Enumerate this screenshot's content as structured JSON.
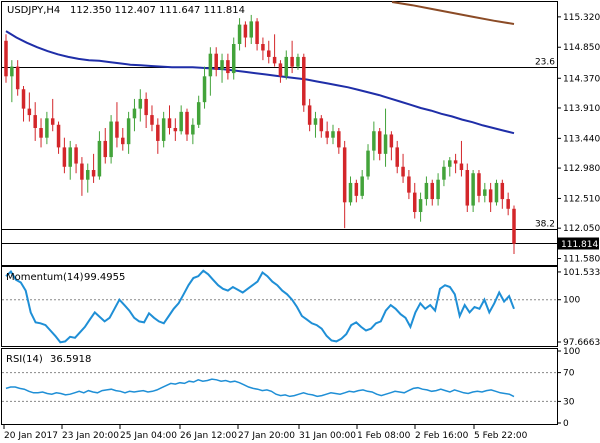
{
  "header": {
    "symbol_label": "USDJPY,H4",
    "ohlc_label": "112.350 112.407 111.647 111.814"
  },
  "colors": {
    "bull": "#43a33a",
    "bear": "#d3262a",
    "ma_fast": "#1f2ea8",
    "ma_slow": "#8b4b26",
    "indicator": "#1f8fd6",
    "level_line": "#000000",
    "price_tag_bg": "#000000",
    "price_tag_text": "#ffffff"
  },
  "chart_data": [
    {
      "type": "candlestick",
      "title": "USDJPY,H4",
      "ohlc_readout": "112.350 112.407 111.647 111.814",
      "y_ticks": [
        "115.320",
        "114.850",
        "114.370",
        "113.910",
        "113.440",
        "112.980",
        "112.510",
        "112.050",
        "111.580"
      ],
      "ylim": [
        111.48,
        115.55
      ],
      "x_ticks": [
        "20 Jan 2017",
        "23 Jan 20:00",
        "25 Jan 04:00",
        "26 Jan 12:00",
        "27 Jan 20:00",
        "31 Jan 00:00",
        "1 Feb 08:00",
        "2 Feb 16:00",
        "5 Feb 22:00"
      ],
      "current_price_label": "111.814",
      "current_price": 111.814,
      "fib_levels": [
        {
          "label": "23.6",
          "value": 114.55
        },
        {
          "label": "38.2",
          "value": 112.03
        }
      ],
      "candles": [
        {
          "o": 114.95,
          "h": 115.05,
          "l": 114.3,
          "c": 114.4
        },
        {
          "o": 114.4,
          "h": 114.65,
          "l": 114.0,
          "c": 114.55
        },
        {
          "o": 114.55,
          "h": 114.65,
          "l": 114.1,
          "c": 114.2
        },
        {
          "o": 114.2,
          "h": 114.25,
          "l": 113.7,
          "c": 113.9
        },
        {
          "o": 113.9,
          "h": 114.15,
          "l": 113.7,
          "c": 113.8
        },
        {
          "o": 113.8,
          "h": 114.0,
          "l": 113.4,
          "c": 113.6
        },
        {
          "o": 113.6,
          "h": 113.75,
          "l": 113.3,
          "c": 113.45
        },
        {
          "o": 113.45,
          "h": 113.85,
          "l": 113.35,
          "c": 113.75
        },
        {
          "o": 113.75,
          "h": 114.05,
          "l": 113.55,
          "c": 113.65
        },
        {
          "o": 113.65,
          "h": 113.7,
          "l": 113.2,
          "c": 113.3
        },
        {
          "o": 113.3,
          "h": 113.45,
          "l": 112.9,
          "c": 113.0
        },
        {
          "o": 113.0,
          "h": 113.4,
          "l": 112.8,
          "c": 113.3
        },
        {
          "o": 113.3,
          "h": 113.35,
          "l": 112.9,
          "c": 113.05
        },
        {
          "o": 113.05,
          "h": 113.15,
          "l": 112.55,
          "c": 112.8
        },
        {
          "o": 112.8,
          "h": 113.05,
          "l": 112.6,
          "c": 112.95
        },
        {
          "o": 112.95,
          "h": 113.2,
          "l": 112.75,
          "c": 112.85
        },
        {
          "o": 112.85,
          "h": 113.55,
          "l": 112.8,
          "c": 113.4
        },
        {
          "o": 113.4,
          "h": 113.6,
          "l": 113.05,
          "c": 113.15
        },
        {
          "o": 113.15,
          "h": 113.8,
          "l": 113.05,
          "c": 113.7
        },
        {
          "o": 113.7,
          "h": 114.0,
          "l": 113.3,
          "c": 113.45
        },
        {
          "o": 113.45,
          "h": 113.6,
          "l": 113.25,
          "c": 113.35
        },
        {
          "o": 113.35,
          "h": 113.85,
          "l": 113.2,
          "c": 113.75
        },
        {
          "o": 113.75,
          "h": 114.05,
          "l": 113.55,
          "c": 113.9
        },
        {
          "o": 113.9,
          "h": 114.2,
          "l": 113.7,
          "c": 114.05
        },
        {
          "o": 114.05,
          "h": 114.15,
          "l": 113.6,
          "c": 113.8
        },
        {
          "o": 113.8,
          "h": 113.95,
          "l": 113.55,
          "c": 113.65
        },
        {
          "o": 113.65,
          "h": 113.75,
          "l": 113.2,
          "c": 113.4
        },
        {
          "o": 113.4,
          "h": 113.85,
          "l": 113.3,
          "c": 113.75
        },
        {
          "o": 113.75,
          "h": 113.95,
          "l": 113.5,
          "c": 113.6
        },
        {
          "o": 113.6,
          "h": 113.75,
          "l": 113.4,
          "c": 113.55
        },
        {
          "o": 113.55,
          "h": 113.95,
          "l": 113.5,
          "c": 113.85
        },
        {
          "o": 113.85,
          "h": 113.9,
          "l": 113.4,
          "c": 113.5
        },
        {
          "o": 113.5,
          "h": 113.75,
          "l": 113.35,
          "c": 113.65
        },
        {
          "o": 113.65,
          "h": 114.1,
          "l": 113.6,
          "c": 114.0
        },
        {
          "o": 114.0,
          "h": 114.55,
          "l": 113.9,
          "c": 114.4
        },
        {
          "o": 114.4,
          "h": 114.85,
          "l": 114.1,
          "c": 114.75
        },
        {
          "o": 114.75,
          "h": 114.85,
          "l": 114.4,
          "c": 114.5
        },
        {
          "o": 114.5,
          "h": 114.75,
          "l": 114.3,
          "c": 114.65
        },
        {
          "o": 114.65,
          "h": 114.75,
          "l": 114.35,
          "c": 114.45
        },
        {
          "o": 114.45,
          "h": 115.0,
          "l": 114.35,
          "c": 114.9
        },
        {
          "o": 114.9,
          "h": 115.3,
          "l": 114.8,
          "c": 115.2
        },
        {
          "o": 115.2,
          "h": 115.25,
          "l": 114.85,
          "c": 115.0
        },
        {
          "o": 115.0,
          "h": 115.35,
          "l": 114.9,
          "c": 115.25
        },
        {
          "o": 115.25,
          "h": 115.3,
          "l": 114.8,
          "c": 114.9
        },
        {
          "o": 114.9,
          "h": 115.0,
          "l": 114.65,
          "c": 114.8
        },
        {
          "o": 114.8,
          "h": 114.95,
          "l": 114.6,
          "c": 114.7
        },
        {
          "o": 114.7,
          "h": 115.05,
          "l": 114.55,
          "c": 114.6
        },
        {
          "o": 114.6,
          "h": 114.65,
          "l": 114.3,
          "c": 114.4
        },
        {
          "o": 114.4,
          "h": 114.8,
          "l": 114.35,
          "c": 114.7
        },
        {
          "o": 114.7,
          "h": 114.95,
          "l": 114.45,
          "c": 114.55
        },
        {
          "o": 114.55,
          "h": 114.75,
          "l": 114.5,
          "c": 114.7
        },
        {
          "o": 114.7,
          "h": 114.75,
          "l": 113.85,
          "c": 113.95
        },
        {
          "o": 113.95,
          "h": 114.05,
          "l": 113.55,
          "c": 113.65
        },
        {
          "o": 113.65,
          "h": 113.85,
          "l": 113.45,
          "c": 113.75
        },
        {
          "o": 113.75,
          "h": 113.8,
          "l": 113.45,
          "c": 113.55
        },
        {
          "o": 113.55,
          "h": 113.7,
          "l": 113.35,
          "c": 113.45
        },
        {
          "o": 113.45,
          "h": 113.65,
          "l": 113.35,
          "c": 113.55
        },
        {
          "o": 113.55,
          "h": 113.6,
          "l": 113.2,
          "c": 113.3
        },
        {
          "o": 113.3,
          "h": 113.4,
          "l": 112.05,
          "c": 112.45
        },
        {
          "o": 112.45,
          "h": 112.85,
          "l": 112.4,
          "c": 112.75
        },
        {
          "o": 112.75,
          "h": 112.8,
          "l": 112.45,
          "c": 112.55
        },
        {
          "o": 112.55,
          "h": 112.95,
          "l": 112.5,
          "c": 112.85
        },
        {
          "o": 112.85,
          "h": 113.35,
          "l": 112.8,
          "c": 113.25
        },
        {
          "o": 113.25,
          "h": 113.7,
          "l": 113.1,
          "c": 113.55
        },
        {
          "o": 113.55,
          "h": 113.6,
          "l": 113.1,
          "c": 113.2
        },
        {
          "o": 113.2,
          "h": 113.9,
          "l": 113.0,
          "c": 113.5
        },
        {
          "o": 113.5,
          "h": 113.55,
          "l": 113.1,
          "c": 113.3
        },
        {
          "o": 113.3,
          "h": 113.4,
          "l": 112.9,
          "c": 113.0
        },
        {
          "o": 113.0,
          "h": 113.2,
          "l": 112.75,
          "c": 112.85
        },
        {
          "o": 112.85,
          "h": 112.95,
          "l": 112.5,
          "c": 112.6
        },
        {
          "o": 112.6,
          "h": 112.75,
          "l": 112.2,
          "c": 112.3
        },
        {
          "o": 112.3,
          "h": 112.6,
          "l": 112.15,
          "c": 112.5
        },
        {
          "o": 112.5,
          "h": 112.85,
          "l": 112.4,
          "c": 112.75
        },
        {
          "o": 112.75,
          "h": 112.8,
          "l": 112.4,
          "c": 112.5
        },
        {
          "o": 112.5,
          "h": 112.9,
          "l": 112.4,
          "c": 112.8
        },
        {
          "o": 112.8,
          "h": 113.1,
          "l": 112.7,
          "c": 113.0
        },
        {
          "o": 113.0,
          "h": 113.15,
          "l": 112.85,
          "c": 113.1
        },
        {
          "o": 113.1,
          "h": 113.2,
          "l": 112.9,
          "c": 113.05
        },
        {
          "o": 113.05,
          "h": 113.4,
          "l": 112.85,
          "c": 112.95
        },
        {
          "o": 112.95,
          "h": 113.05,
          "l": 112.3,
          "c": 112.4
        },
        {
          "o": 112.4,
          "h": 112.95,
          "l": 112.3,
          "c": 112.9
        },
        {
          "o": 112.9,
          "h": 112.95,
          "l": 112.45,
          "c": 112.55
        },
        {
          "o": 112.55,
          "h": 112.75,
          "l": 112.45,
          "c": 112.65
        },
        {
          "o": 112.65,
          "h": 112.75,
          "l": 112.3,
          "c": 112.45
        },
        {
          "o": 112.45,
          "h": 112.8,
          "l": 112.4,
          "c": 112.75
        },
        {
          "o": 112.75,
          "h": 112.8,
          "l": 112.35,
          "c": 112.5
        },
        {
          "o": 112.5,
          "h": 112.6,
          "l": 112.25,
          "c": 112.35
        },
        {
          "o": 112.35,
          "h": 112.4,
          "l": 111.65,
          "c": 111.81
        }
      ],
      "ma_fast": [
        115.1,
        115.0,
        114.92,
        114.85,
        114.79,
        114.74,
        114.7,
        114.67,
        114.65,
        114.64,
        114.62,
        114.6,
        114.58,
        114.57,
        114.56,
        114.55,
        114.54,
        114.54,
        114.54,
        114.53,
        114.52,
        114.51,
        114.49,
        114.47,
        114.45,
        114.43,
        114.41,
        114.39,
        114.37,
        114.35,
        114.32,
        114.29,
        114.26,
        114.23,
        114.19,
        114.15,
        114.11,
        114.06,
        114.01,
        113.96,
        113.91,
        113.87,
        113.82,
        113.78,
        113.73,
        113.69,
        113.64,
        113.6,
        113.56,
        113.52
      ],
      "ma_slow": [
        115.55,
        115.5,
        115.44,
        115.38,
        115.32,
        115.26,
        115.21
      ]
    },
    {
      "type": "line",
      "title": "Momentum(14)",
      "name_label": "Momentum(14)",
      "value_label": "99.4955",
      "y_ticks": [
        "101.5332",
        "100",
        "97.6663"
      ],
      "ylim": [
        97.5,
        101.75
      ],
      "reference_level": 100,
      "values": [
        101.3,
        101.55,
        101.1,
        100.95,
        100.5,
        99.3,
        98.75,
        98.7,
        98.6,
        98.3,
        98.0,
        97.65,
        97.7,
        97.95,
        97.9,
        98.2,
        98.5,
        98.9,
        99.3,
        99.05,
        98.8,
        99.0,
        99.5,
        100.0,
        99.7,
        99.4,
        99.0,
        98.8,
        98.75,
        99.25,
        99.0,
        98.8,
        98.7,
        99.1,
        99.5,
        99.8,
        100.3,
        100.8,
        101.2,
        101.3,
        101.6,
        101.4,
        101.1,
        100.8,
        100.6,
        100.5,
        100.7,
        100.55,
        100.4,
        100.6,
        100.8,
        101.0,
        101.5,
        101.3,
        101.0,
        100.8,
        100.5,
        100.3,
        100.0,
        99.6,
        99.1,
        98.9,
        98.7,
        98.6,
        98.4,
        98.0,
        97.75,
        97.7,
        97.85,
        98.1,
        98.6,
        98.75,
        98.5,
        98.3,
        98.4,
        98.7,
        98.8,
        99.4,
        99.7,
        99.5,
        99.2,
        99.0,
        98.5,
        99.3,
        99.8,
        99.5,
        99.7,
        99.4,
        100.6,
        100.8,
        100.7,
        100.3,
        99.1,
        99.7,
        99.3,
        99.6,
        99.5,
        100.0,
        99.3,
        99.8,
        100.4,
        99.9,
        100.2,
        99.5
      ]
    },
    {
      "type": "line",
      "title": "RSI(14)",
      "name_label": "RSI(14)",
      "value_label": "36.5918",
      "y_ticks": [
        "100",
        "70",
        "30",
        "0"
      ],
      "ylim": [
        0,
        100
      ],
      "levels": [
        70,
        30
      ],
      "values": [
        48,
        50,
        50,
        48,
        47,
        44,
        42,
        42,
        43,
        41,
        40,
        42,
        41,
        39,
        40,
        42,
        44,
        42,
        45,
        43,
        42,
        45,
        46,
        47,
        45,
        44,
        42,
        44,
        43,
        44,
        45,
        43,
        44,
        46,
        49,
        52,
        55,
        54,
        56,
        55,
        58,
        57,
        60,
        58,
        59,
        61,
        60,
        58,
        59,
        57,
        58,
        56,
        53,
        50,
        48,
        47,
        45,
        46,
        44,
        40,
        38,
        39,
        37,
        38,
        40,
        42,
        40,
        39,
        37,
        38,
        40,
        42,
        41,
        40,
        42,
        44,
        43,
        45,
        46,
        44,
        43,
        40,
        38,
        40,
        42,
        44,
        43,
        42,
        45,
        48,
        49,
        47,
        46,
        44,
        45,
        47,
        45,
        43,
        46,
        44,
        42,
        41,
        43,
        44,
        43,
        45,
        46,
        44,
        42,
        41,
        40,
        36.6
      ]
    }
  ]
}
